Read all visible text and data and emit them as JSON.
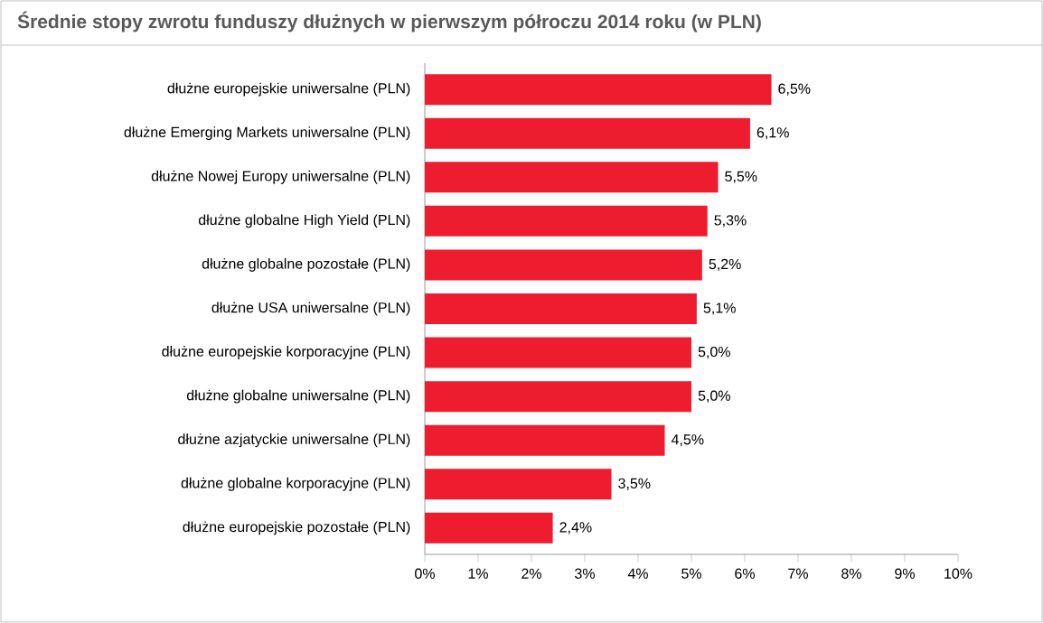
{
  "chart_data": {
    "type": "bar",
    "orientation": "horizontal",
    "title": "Średnie stopy zwrotu funduszy dłużnych w pierwszym półroczu 2014 roku (w PLN)",
    "categories": [
      "dłużne europejskie uniwersalne (PLN)",
      "dłużne Emerging Markets uniwersalne (PLN)",
      "dłużne Nowej Europy uniwersalne (PLN)",
      "dłużne globalne High Yield (PLN)",
      "dłużne globalne pozostałe (PLN)",
      "dłużne USA uniwersalne (PLN)",
      "dłużne europejskie korporacyjne (PLN)",
      "dłużne globalne uniwersalne (PLN)",
      "dłużne azjatyckie uniwersalne (PLN)",
      "dłużne globalne korporacyjne (PLN)",
      "dłużne europejskie pozostałe (PLN)"
    ],
    "values": [
      6.5,
      6.1,
      5.5,
      5.3,
      5.2,
      5.1,
      5.0,
      5.0,
      4.5,
      3.5,
      2.4
    ],
    "value_labels": [
      "6,5%",
      "6,1%",
      "5,5%",
      "5,3%",
      "5,2%",
      "5,1%",
      "5,0%",
      "5,0%",
      "4,5%",
      "3,5%",
      "2,4%"
    ],
    "color": "#ed1c2e",
    "xlim": [
      0,
      10
    ],
    "xticks": [
      {
        "value": 0,
        "label": "0%"
      },
      {
        "value": 1,
        "label": "1%"
      },
      {
        "value": 2,
        "label": "2%"
      },
      {
        "value": 3,
        "label": "3%"
      },
      {
        "value": 4,
        "label": "4%"
      },
      {
        "value": 5,
        "label": "5%"
      },
      {
        "value": 6,
        "label": "6%"
      },
      {
        "value": 7,
        "label": "7%"
      },
      {
        "value": 8,
        "label": "8%"
      },
      {
        "value": 9,
        "label": "9%"
      },
      {
        "value": 10,
        "label": "10%"
      }
    ]
  }
}
